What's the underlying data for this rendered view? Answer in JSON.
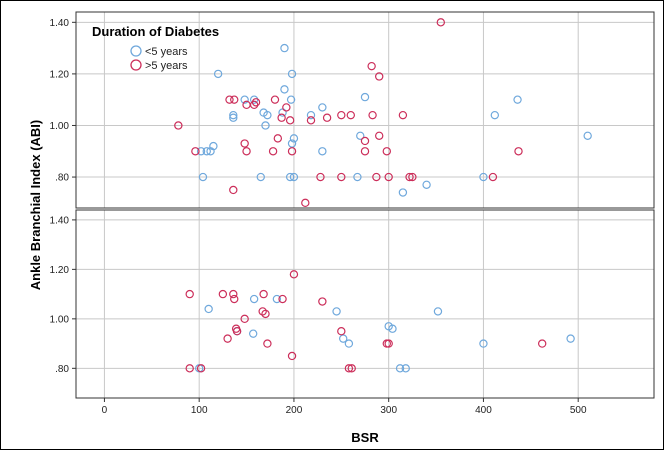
{
  "chart_data": {
    "type": "scatter",
    "xlabel": "BSR",
    "ylabel": "Ankle Branchial Index (ABI)",
    "xlim": [
      -30,
      580
    ],
    "ylim": [
      0.68,
      1.44
    ],
    "x_ticks": [
      0,
      100,
      200,
      300,
      400,
      500
    ],
    "x_tick_labels": [
      "0",
      "100",
      "200",
      "300",
      "400",
      "500"
    ],
    "y_ticks": [
      0.8,
      1.0,
      1.2,
      1.4
    ],
    "y_tick_labels": [
      ".80",
      "1.00",
      "1.20",
      "1.40"
    ],
    "grid": true,
    "legend": {
      "title": "Duration of Diabetes",
      "placement": "top-left",
      "entries": [
        {
          "label": "<5 years",
          "color": "#6fa8dc"
        },
        {
          "label": ">5 years",
          "color": "#cc2e5a"
        }
      ]
    },
    "panels": [
      {
        "name": "top",
        "series": [
          {
            "color": "#6fa8dc",
            "points": [
              [
                190,
                1.3
              ],
              [
                120,
                1.2
              ],
              [
                198,
                1.2
              ],
              [
                190,
                1.14
              ],
              [
                275,
                1.11
              ],
              [
                230,
                1.07
              ],
              [
                197,
                1.1
              ],
              [
                168,
                1.05
              ],
              [
                172,
                1.04
              ],
              [
                218,
                1.04
              ],
              [
                136,
                1.04
              ],
              [
                136,
                1.03
              ],
              [
                158,
                1.1
              ],
              [
                148,
                1.1
              ],
              [
                188,
                1.05
              ],
              [
                412,
                1.04
              ],
              [
                436,
                1.1
              ],
              [
                170,
                1.0
              ],
              [
                200,
                0.95
              ],
              [
                198,
                0.93
              ],
              [
                270,
                0.96
              ],
              [
                115,
                0.92
              ],
              [
                112,
                0.9
              ],
              [
                108,
                0.9
              ],
              [
                102,
                0.9
              ],
              [
                230,
                0.9
              ],
              [
                510,
                0.96
              ],
              [
                104,
                0.8
              ],
              [
                165,
                0.8
              ],
              [
                196,
                0.8
              ],
              [
                200,
                0.8
              ],
              [
                267,
                0.8
              ],
              [
                340,
                0.77
              ],
              [
                315,
                0.74
              ],
              [
                400,
                0.8
              ]
            ]
          },
          {
            "color": "#cc2e5a",
            "points": [
              [
                355,
                1.4
              ],
              [
                282,
                1.23
              ],
              [
                290,
                1.19
              ],
              [
                132,
                1.1
              ],
              [
                137,
                1.1
              ],
              [
                160,
                1.09
              ],
              [
                158,
                1.08
              ],
              [
                150,
                1.08
              ],
              [
                180,
                1.1
              ],
              [
                192,
                1.07
              ],
              [
                187,
                1.03
              ],
              [
                196,
                1.02
              ],
              [
                218,
                1.02
              ],
              [
                235,
                1.03
              ],
              [
                250,
                1.04
              ],
              [
                260,
                1.04
              ],
              [
                283,
                1.04
              ],
              [
                315,
                1.04
              ],
              [
                78,
                1.0
              ],
              [
                148,
                0.93
              ],
              [
                183,
                0.95
              ],
              [
                275,
                0.94
              ],
              [
                290,
                0.96
              ],
              [
                96,
                0.9
              ],
              [
                150,
                0.9
              ],
              [
                178,
                0.9
              ],
              [
                198,
                0.9
              ],
              [
                275,
                0.9
              ],
              [
                298,
                0.9
              ],
              [
                437,
                0.9
              ],
              [
                136,
                0.75
              ],
              [
                212,
                0.7
              ],
              [
                228,
                0.8
              ],
              [
                250,
                0.8
              ],
              [
                287,
                0.8
              ],
              [
                300,
                0.8
              ],
              [
                322,
                0.8
              ],
              [
                325,
                0.8
              ],
              [
                410,
                0.8
              ]
            ]
          }
        ]
      },
      {
        "name": "bottom",
        "series": [
          {
            "color": "#6fa8dc",
            "points": [
              [
                110,
                1.04
              ],
              [
                158,
                1.08
              ],
              [
                182,
                1.08
              ],
              [
                245,
                1.03
              ],
              [
                352,
                1.03
              ],
              [
                140,
                0.95
              ],
              [
                157,
                0.94
              ],
              [
                252,
                0.92
              ],
              [
                258,
                0.9
              ],
              [
                300,
                0.97
              ],
              [
                304,
                0.96
              ],
              [
                400,
                0.9
              ],
              [
                492,
                0.92
              ],
              [
                100,
                0.8
              ],
              [
                312,
                0.8
              ],
              [
                318,
                0.8
              ]
            ]
          },
          {
            "color": "#cc2e5a",
            "points": [
              [
                200,
                1.18
              ],
              [
                90,
                1.1
              ],
              [
                125,
                1.1
              ],
              [
                136,
                1.1
              ],
              [
                137,
                1.08
              ],
              [
                168,
                1.1
              ],
              [
                188,
                1.08
              ],
              [
                230,
                1.07
              ],
              [
                148,
                1.0
              ],
              [
                167,
                1.03
              ],
              [
                170,
                1.02
              ],
              [
                139,
                0.96
              ],
              [
                140,
                0.95
              ],
              [
                130,
                0.92
              ],
              [
                172,
                0.9
              ],
              [
                250,
                0.95
              ],
              [
                298,
                0.9
              ],
              [
                300,
                0.9
              ],
              [
                462,
                0.9
              ],
              [
                198,
                0.85
              ],
              [
                90,
                0.8
              ],
              [
                102,
                0.8
              ],
              [
                258,
                0.8
              ],
              [
                261,
                0.8
              ]
            ]
          }
        ]
      }
    ]
  }
}
